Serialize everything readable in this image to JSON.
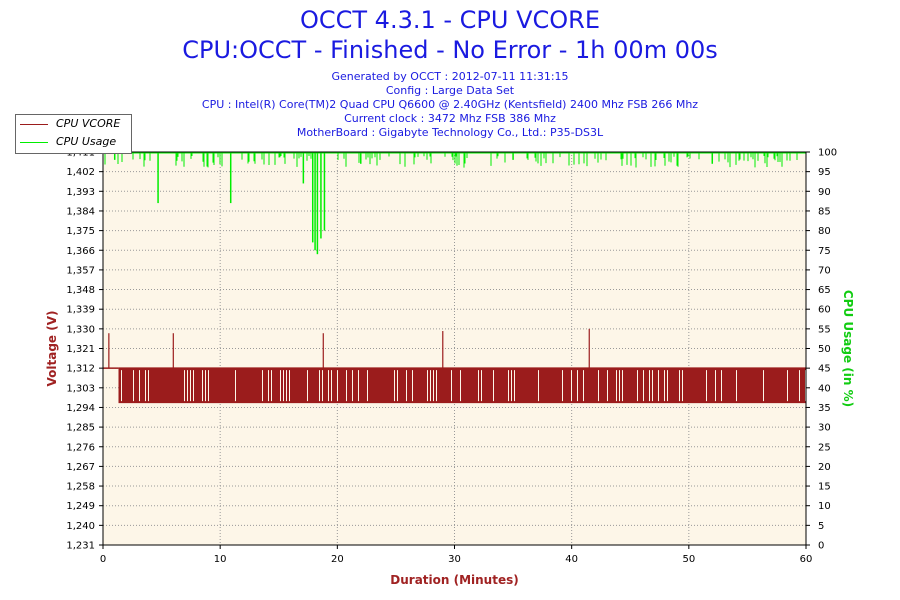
{
  "header": {
    "title": "OCCT 4.3.1 - CPU VCORE",
    "subtitle": "CPU:OCCT - Finished - No Error - 1h 00m 00s",
    "generated": "Generated by OCCT : 2012-07-11 11:31:15",
    "config": "Config : Large Data Set",
    "cpu": "CPU : Intel(R) Core(TM)2 Quad CPU Q6600 @ 2.40GHz (Kentsfield) 2400 Mhz FSB 266 Mhz",
    "clock": "Current clock : 3472 Mhz FSB 386 Mhz",
    "motherboard": "MotherBoard : Gigabyte Technology Co., Ltd.: P35-DS3L"
  },
  "chart_data": {
    "type": "line",
    "xlabel": "Duration (Minutes)",
    "ylabel": "Voltage (V)",
    "y2label": "CPU Usage (in %)",
    "xlim": [
      0,
      60
    ],
    "ylim": [
      1.231,
      1.411
    ],
    "y2lim": [
      0,
      100
    ],
    "x_ticks": [
      0,
      10,
      20,
      30,
      40,
      50,
      60
    ],
    "y_ticks": [
      "1,231",
      "1,240",
      "1,249",
      "1,258",
      "1,267",
      "1,276",
      "1,285",
      "1,294",
      "1,303",
      "1,312",
      "1,321",
      "1,330",
      "1,339",
      "1,348",
      "1,357",
      "1,366",
      "1,375",
      "1,384",
      "1,393",
      "1,402",
      "1,411"
    ],
    "y2_ticks": [
      0,
      5,
      10,
      15,
      20,
      25,
      30,
      35,
      40,
      45,
      50,
      55,
      60,
      65,
      70,
      75,
      80,
      85,
      90,
      95,
      100
    ],
    "grid": true,
    "legend_position": "top-left",
    "series": [
      {
        "name": "CPU VCORE",
        "color": "#9b1c1c",
        "axis": "left",
        "points": [
          [
            0,
            1.312
          ],
          [
            0.5,
            1.328
          ],
          [
            1.0,
            1.296
          ],
          [
            1.5,
            1.312
          ],
          [
            5.0,
            1.296
          ],
          [
            6.0,
            1.328
          ],
          [
            7.0,
            1.312
          ],
          [
            12.0,
            1.296
          ],
          [
            18.8,
            1.328
          ],
          [
            20.0,
            1.312
          ],
          [
            25.0,
            1.296
          ],
          [
            29.0,
            1.329
          ],
          [
            30.0,
            1.312
          ],
          [
            35.0,
            1.296
          ],
          [
            40.0,
            1.312
          ],
          [
            41.5,
            1.33
          ],
          [
            45.0,
            1.296
          ],
          [
            50.0,
            1.312
          ],
          [
            55.0,
            1.296
          ],
          [
            59.5,
            1.296
          ],
          [
            60.0,
            1.312
          ]
        ],
        "range_band": [
          1.296,
          1.312
        ]
      },
      {
        "name": "CPU Usage",
        "color": "#00ee00",
        "axis": "right",
        "points": [
          [
            0,
            100
          ],
          [
            1.0,
            98
          ],
          [
            4.7,
            87
          ],
          [
            5.0,
            100
          ],
          [
            10.9,
            87
          ],
          [
            11.2,
            100
          ],
          [
            17.1,
            92
          ],
          [
            17.3,
            100
          ],
          [
            17.9,
            77
          ],
          [
            18.1,
            75
          ],
          [
            18.3,
            74
          ],
          [
            18.6,
            78
          ],
          [
            18.9,
            80
          ],
          [
            19.2,
            100
          ],
          [
            22.0,
            97
          ],
          [
            35.0,
            98
          ],
          [
            52.0,
            97
          ],
          [
            60,
            100
          ]
        ],
        "baseline": 100
      }
    ]
  }
}
